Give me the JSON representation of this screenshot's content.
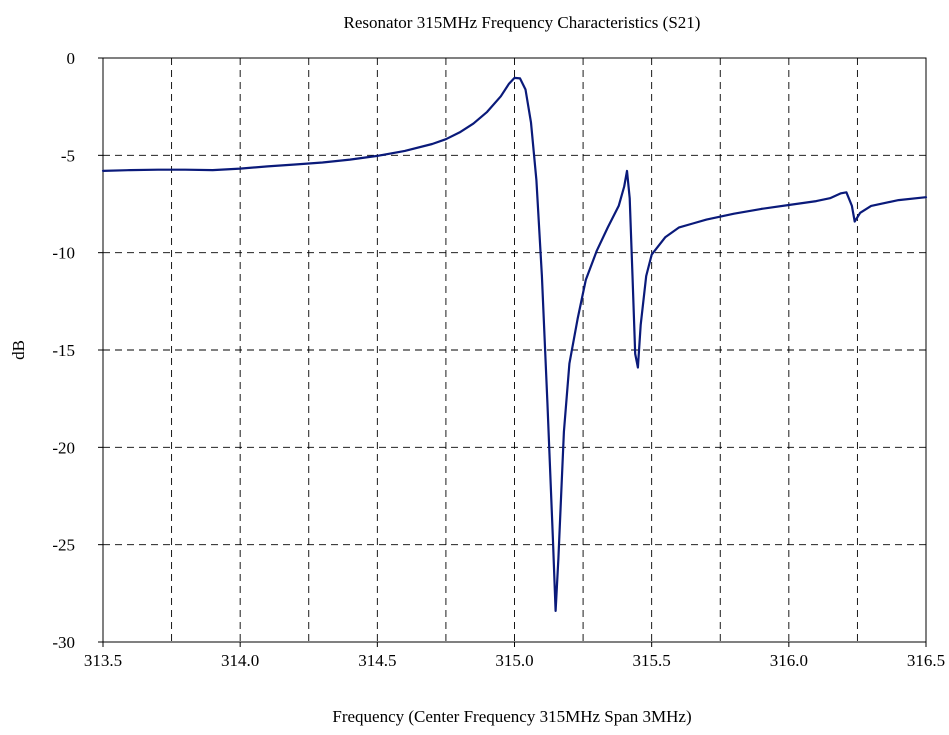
{
  "chart_data": {
    "type": "line",
    "title": "Resonator 315MHz Frequency Characteristics (S21)",
    "xlabel": "Frequency (Center Frequency 315MHz Span 3MHz)",
    "ylabel": "dB",
    "xlim": [
      313.5,
      316.5
    ],
    "ylim": [
      -30,
      0
    ],
    "x_ticks": [
      313.5,
      314.0,
      314.5,
      315.0,
      315.5,
      316.0,
      316.5
    ],
    "x_tick_labels": [
      "313.5",
      "314.0",
      "314.5",
      "315.0",
      "315.5",
      "316.0",
      "316.5"
    ],
    "x_minor_grid": [
      313.75,
      314.25,
      314.75,
      315.25,
      315.75,
      316.25
    ],
    "y_ticks": [
      0,
      -5,
      -10,
      -15,
      -20,
      -25,
      -30
    ],
    "y_tick_labels": [
      "0",
      "-5",
      "-10",
      "-15",
      "-20",
      "-25",
      "-30"
    ],
    "grid": true,
    "grid_style": "dashed",
    "line_color": "#0a1a7a",
    "series": [
      {
        "points": [
          [
            313.5,
            -5.8
          ],
          [
            313.6,
            -5.76
          ],
          [
            313.7,
            -5.74
          ],
          [
            313.8,
            -5.74
          ],
          [
            313.9,
            -5.76
          ],
          [
            314.0,
            -5.68
          ],
          [
            314.1,
            -5.57
          ],
          [
            314.2,
            -5.47
          ],
          [
            314.3,
            -5.37
          ],
          [
            314.4,
            -5.22
          ],
          [
            314.5,
            -5.03
          ],
          [
            314.6,
            -4.77
          ],
          [
            314.7,
            -4.42
          ],
          [
            314.75,
            -4.17
          ],
          [
            314.8,
            -3.82
          ],
          [
            314.85,
            -3.37
          ],
          [
            314.9,
            -2.77
          ],
          [
            314.95,
            -1.97
          ],
          [
            314.98,
            -1.32
          ],
          [
            315.0,
            -1.02
          ],
          [
            315.02,
            -1.05
          ],
          [
            315.04,
            -1.62
          ],
          [
            315.06,
            -3.32
          ],
          [
            315.08,
            -6.27
          ],
          [
            315.1,
            -11.2
          ],
          [
            315.12,
            -17.7
          ],
          [
            315.14,
            -24.7
          ],
          [
            315.15,
            -28.4
          ],
          [
            315.16,
            -25.7
          ],
          [
            315.18,
            -19.2
          ],
          [
            315.2,
            -15.7
          ],
          [
            315.23,
            -13.4
          ],
          [
            315.26,
            -11.4
          ],
          [
            315.3,
            -9.9
          ],
          [
            315.34,
            -8.7
          ],
          [
            315.38,
            -7.6
          ],
          [
            315.4,
            -6.6
          ],
          [
            315.41,
            -5.8
          ],
          [
            315.42,
            -7.2
          ],
          [
            315.43,
            -11.2
          ],
          [
            315.44,
            -15.2
          ],
          [
            315.45,
            -15.9
          ],
          [
            315.46,
            -13.7
          ],
          [
            315.48,
            -11.2
          ],
          [
            315.5,
            -10.1
          ],
          [
            315.55,
            -9.2
          ],
          [
            315.6,
            -8.7
          ],
          [
            315.65,
            -8.5
          ],
          [
            315.7,
            -8.3
          ],
          [
            315.8,
            -8.0
          ],
          [
            315.9,
            -7.75
          ],
          [
            316.0,
            -7.55
          ],
          [
            316.1,
            -7.35
          ],
          [
            316.15,
            -7.2
          ],
          [
            316.19,
            -6.95
          ],
          [
            316.21,
            -6.9
          ],
          [
            316.23,
            -7.6
          ],
          [
            316.24,
            -8.4
          ],
          [
            316.26,
            -7.95
          ],
          [
            316.3,
            -7.6
          ],
          [
            316.4,
            -7.3
          ],
          [
            316.5,
            -7.15
          ]
        ]
      }
    ]
  }
}
